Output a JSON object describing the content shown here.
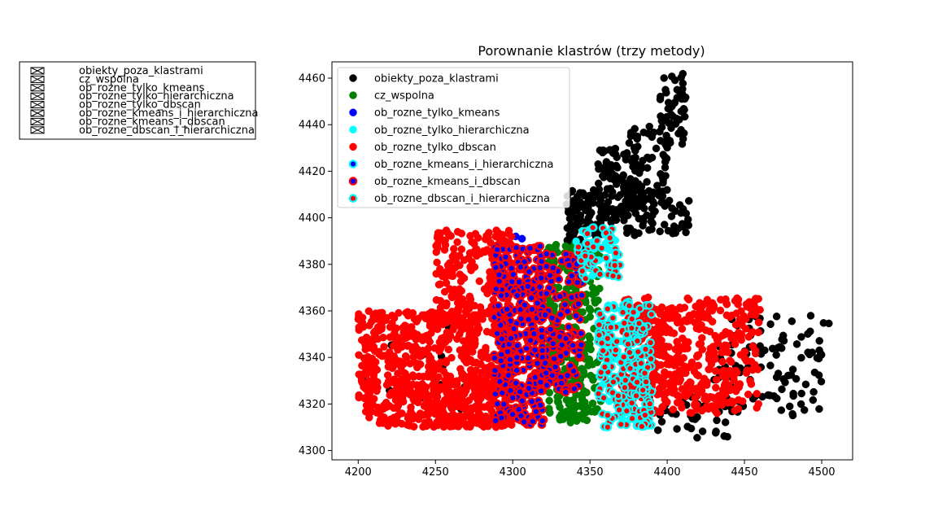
{
  "chart_data": {
    "type": "scatter",
    "title": "Porownanie klastrów (trzy metody)",
    "xlabel": "",
    "ylabel": "",
    "xlim": [
      4183,
      4520
    ],
    "ylim": [
      4296,
      4467
    ],
    "xticks": [
      4200,
      4250,
      4300,
      4350,
      4400,
      4450,
      4500
    ],
    "yticks": [
      4300,
      4320,
      4340,
      4360,
      4380,
      4400,
      4420,
      4440,
      4460
    ],
    "grid": false,
    "legend_position": "top-left inside plot",
    "series": [
      {
        "name": "obiekty_poza_klastrami",
        "face": "#000000",
        "edge": "#000000",
        "regions": [
          {
            "x": [
              4335,
              4355
            ],
            "y": [
              4385,
              4412
            ],
            "n": 90
          },
          {
            "x": [
              4355,
              4380
            ],
            "y": [
              4392,
              4430
            ],
            "n": 120
          },
          {
            "x": [
              4375,
              4400
            ],
            "y": [
              4405,
              4440
            ],
            "n": 80
          },
          {
            "x": [
              4395,
              4412
            ],
            "y": [
              4430,
              4462
            ],
            "n": 55
          },
          {
            "x": [
              4380,
              4415
            ],
            "y": [
              4392,
              4408
            ],
            "n": 40
          },
          {
            "x": [
              4430,
              4500
            ],
            "y": [
              4315,
              4345
            ],
            "n": 80
          },
          {
            "x": [
              4440,
              4505
            ],
            "y": [
              4340,
              4358
            ],
            "n": 30
          },
          {
            "x": [
              4380,
              4440
            ],
            "y": [
              4305,
              4325
            ],
            "n": 35
          },
          {
            "x": [
              4198,
              4250
            ],
            "y": [
              4322,
              4347
            ],
            "n": 10
          },
          {
            "x": [
              4250,
              4270
            ],
            "y": [
              4310,
              4396
            ],
            "n": 12
          }
        ]
      },
      {
        "name": "cz_wspolna",
        "face": "#008000",
        "edge": "#008000",
        "regions": [
          {
            "x": [
              4322,
              4357
            ],
            "y": [
              4316,
              4389
            ],
            "n": 280
          },
          {
            "x": [
              4330,
              4352
            ],
            "y": [
              4312,
              4320
            ],
            "n": 20
          }
        ]
      },
      {
        "name": "ob_rozne_tylko_kmeans",
        "face": "#0000ff",
        "edge": "#0000ff",
        "points": [
          [
            4302,
            4392
          ],
          [
            4306,
            4391
          ],
          [
            4298,
            4389
          ],
          [
            4342,
            4376
          ]
        ]
      },
      {
        "name": "ob_rozne_tylko_hierarchiczna",
        "face": "#00ffff",
        "edge": "#00ffff",
        "regions": [
          {
            "x": [
              4340,
              4368
            ],
            "y": [
              4372,
              4396
            ],
            "n": 25
          },
          {
            "x": [
              4355,
              4388
            ],
            "y": [
              4312,
              4362
            ],
            "n": 30
          }
        ]
      },
      {
        "name": "ob_rozne_tylko_dbscan",
        "face": "#ff0000",
        "edge": "#ff0000",
        "regions": [
          {
            "x": [
              4200,
              4300
            ],
            "y": [
              4310,
              4360
            ],
            "n": 700
          },
          {
            "x": [
              4250,
              4300
            ],
            "y": [
              4355,
              4395
            ],
            "n": 220
          },
          {
            "x": [
              4370,
              4460
            ],
            "y": [
              4316,
              4366
            ],
            "n": 520
          },
          {
            "x": [
              4230,
              4290
            ],
            "y": [
              4310,
              4330
            ],
            "n": 120
          }
        ]
      },
      {
        "name": "ob_rozne_kmeans_i_hierarchiczna",
        "face": "#0000ff",
        "edge": "#00ffff",
        "points": [
          [
            4341,
            4376
          ]
        ]
      },
      {
        "name": "ob_rozne_kmeans_i_dbscan",
        "face": "#0000ff",
        "edge": "#ff0000",
        "regions": [
          {
            "x": [
              4288,
              4320
            ],
            "y": [
              4311,
              4388
            ],
            "n": 360
          },
          {
            "x": [
              4318,
              4345
            ],
            "y": [
              4325,
              4385
            ],
            "n": 160
          }
        ]
      },
      {
        "name": "ob_rozne_dbscan_i_hierarchiczna",
        "face": "#ff0000",
        "edge": "#00ffff",
        "regions": [
          {
            "x": [
              4342,
              4370
            ],
            "y": [
              4372,
              4396
            ],
            "n": 55
          },
          {
            "x": [
              4355,
              4390
            ],
            "y": [
              4310,
              4364
            ],
            "n": 220
          }
        ]
      }
    ]
  },
  "outer_legend": {
    "entries": [
      "obiekty_poza_klastrami",
      "cz_wspolna",
      "ob_rozne_tylko_kmeans",
      "ob_rozne_tylko_hierarchiczna",
      "ob_rozne_tylko_dbscan",
      "ob_rozne_kmeans_i_hierarchiczna",
      "ob_rozne_kmeans_i_dbscan",
      "ob_rozne_dbscan_i_hierarchiczna"
    ]
  }
}
